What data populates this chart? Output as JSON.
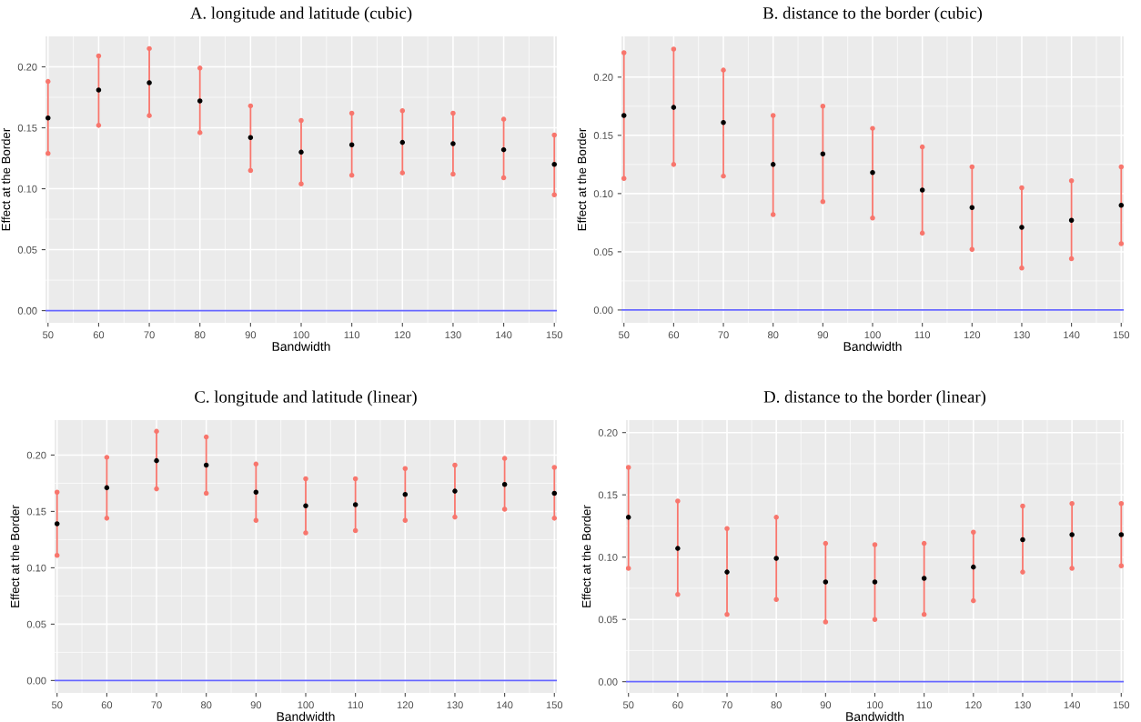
{
  "chart_data": [
    {
      "type": "scatter",
      "title": "A. longitude and latitude (cubic)",
      "xlabel": "Bandwidth",
      "ylabel": "Effect at the Border",
      "x": [
        50,
        60,
        70,
        80,
        90,
        100,
        110,
        120,
        130,
        140,
        150
      ],
      "series": [
        {
          "color": "#000000",
          "values": [
            0.158,
            0.181,
            0.187,
            0.172,
            0.142,
            0.13,
            0.136,
            0.138,
            0.137,
            0.132,
            0.12
          ],
          "errors": [
            [
              0.129,
              0.188
            ],
            [
              0.152,
              0.209
            ],
            [
              0.16,
              0.215
            ],
            [
              0.146,
              0.199
            ],
            [
              0.115,
              0.168
            ],
            [
              0.104,
              0.156
            ],
            [
              0.111,
              0.162
            ],
            [
              0.113,
              0.164
            ],
            [
              0.112,
              0.162
            ],
            [
              0.109,
              0.157
            ],
            [
              0.095,
              0.144
            ]
          ]
        },
        {
          "color": "#f8766d",
          "values": [
            0.129,
            0.152,
            0.16,
            0.146,
            0.115,
            0.104,
            0.111,
            0.113,
            0.112,
            0.109,
            0.095
          ]
        },
        {
          "color": "#f8766d",
          "values": [
            0.188,
            0.209,
            0.215,
            0.199,
            0.168,
            0.156,
            0.162,
            0.164,
            0.162,
            0.157,
            0.144
          ]
        }
      ],
      "xlim": [
        49.5,
        150.5
      ],
      "ylim": [
        -0.01,
        0.225
      ],
      "xticks": [
        50,
        60,
        70,
        80,
        90,
        100,
        110,
        120,
        130,
        140,
        150
      ],
      "yticks": [
        {
          "value": 0,
          "label": "0.00"
        },
        {
          "value": 0.05,
          "label": "0.05"
        },
        {
          "value": 0.1,
          "label": "0.10"
        },
        {
          "value": 0.15,
          "label": "0.15"
        },
        {
          "value": 0.2,
          "label": "0.20"
        }
      ],
      "ref_lines": [
        {
          "axis": "y",
          "value": 0,
          "color": "#6666ff"
        }
      ],
      "grid": true,
      "marker": "circle"
    },
    {
      "type": "scatter",
      "title": "B. distance to the border (cubic)",
      "xlabel": "Bandwidth",
      "ylabel": "Effect at the Border",
      "x": [
        50,
        60,
        70,
        80,
        90,
        100,
        110,
        120,
        130,
        140,
        150
      ],
      "series": [
        {
          "color": "#000000",
          "values": [
            0.167,
            0.174,
            0.161,
            0.125,
            0.134,
            0.118,
            0.103,
            0.088,
            0.071,
            0.077,
            0.09
          ],
          "errors": [
            [
              0.113,
              0.221
            ],
            [
              0.125,
              0.224
            ],
            [
              0.115,
              0.206
            ],
            [
              0.082,
              0.167
            ],
            [
              0.093,
              0.175
            ],
            [
              0.079,
              0.156
            ],
            [
              0.066,
              0.14
            ],
            [
              0.052,
              0.123
            ],
            [
              0.036,
              0.105
            ],
            [
              0.044,
              0.111
            ],
            [
              0.057,
              0.123
            ]
          ]
        },
        {
          "color": "#f8766d",
          "values": [
            0.113,
            0.125,
            0.115,
            0.082,
            0.093,
            0.079,
            0.066,
            0.052,
            0.036,
            0.044,
            0.057
          ]
        },
        {
          "color": "#f8766d",
          "values": [
            0.221,
            0.224,
            0.206,
            0.167,
            0.175,
            0.156,
            0.14,
            0.123,
            0.105,
            0.111,
            0.123
          ]
        }
      ],
      "xlim": [
        49.5,
        150.5
      ],
      "ylim": [
        -0.011,
        0.235
      ],
      "xticks": [
        50,
        60,
        70,
        80,
        90,
        100,
        110,
        120,
        130,
        140,
        150
      ],
      "yticks": [
        {
          "value": 0,
          "label": "0.00"
        },
        {
          "value": 0.05,
          "label": "0.05"
        },
        {
          "value": 0.1,
          "label": "0.10"
        },
        {
          "value": 0.15,
          "label": "0.15"
        },
        {
          "value": 0.2,
          "label": "0.20"
        }
      ],
      "ref_lines": [
        {
          "axis": "y",
          "value": 0,
          "color": "#6666ff"
        }
      ],
      "grid": true,
      "marker": "circle"
    },
    {
      "type": "scatter",
      "title": "C. longitude and latitude (linear)",
      "xlabel": "Bandwidth",
      "ylabel": "Effect at the Border",
      "x": [
        50,
        60,
        70,
        80,
        90,
        100,
        110,
        120,
        130,
        140,
        150
      ],
      "series": [
        {
          "color": "#000000",
          "values": [
            0.139,
            0.171,
            0.195,
            0.191,
            0.167,
            0.155,
            0.156,
            0.165,
            0.168,
            0.174,
            0.166
          ],
          "errors": [
            [
              0.111,
              0.167
            ],
            [
              0.144,
              0.198
            ],
            [
              0.17,
              0.221
            ],
            [
              0.166,
              0.216
            ],
            [
              0.142,
              0.192
            ],
            [
              0.131,
              0.179
            ],
            [
              0.133,
              0.179
            ],
            [
              0.142,
              0.188
            ],
            [
              0.145,
              0.191
            ],
            [
              0.152,
              0.197
            ],
            [
              0.144,
              0.189
            ]
          ]
        },
        {
          "color": "#f8766d",
          "values": [
            0.111,
            0.144,
            0.17,
            0.166,
            0.142,
            0.131,
            0.133,
            0.142,
            0.145,
            0.152,
            0.144
          ]
        },
        {
          "color": "#f8766d",
          "values": [
            0.167,
            0.198,
            0.221,
            0.216,
            0.192,
            0.179,
            0.179,
            0.188,
            0.191,
            0.197,
            0.189
          ]
        }
      ],
      "xlim": [
        49.5,
        150.5
      ],
      "ylim": [
        -0.011,
        0.231
      ],
      "xticks": [
        50,
        60,
        70,
        80,
        90,
        100,
        110,
        120,
        130,
        140,
        150
      ],
      "yticks": [
        {
          "value": 0,
          "label": "0.00"
        },
        {
          "value": 0.05,
          "label": "0.05"
        },
        {
          "value": 0.1,
          "label": "0.10"
        },
        {
          "value": 0.15,
          "label": "0.15"
        },
        {
          "value": 0.2,
          "label": "0.20"
        }
      ],
      "ref_lines": [
        {
          "axis": "y",
          "value": 0,
          "color": "#6666ff"
        }
      ],
      "grid": true,
      "marker": "circle"
    },
    {
      "type": "scatter",
      "title": "D. distance to the border (linear)",
      "xlabel": "Bandwidth",
      "ylabel": "Effect at the Border",
      "x": [
        50,
        60,
        70,
        80,
        90,
        100,
        110,
        120,
        130,
        140,
        150
      ],
      "series": [
        {
          "color": "#000000",
          "values": [
            0.132,
            0.107,
            0.088,
            0.099,
            0.08,
            0.08,
            0.083,
            0.092,
            0.114,
            0.118,
            0.118
          ],
          "errors": [
            [
              0.091,
              0.172
            ],
            [
              0.07,
              0.145
            ],
            [
              0.054,
              0.123
            ],
            [
              0.066,
              0.132
            ],
            [
              0.048,
              0.111
            ],
            [
              0.05,
              0.11
            ],
            [
              0.054,
              0.111
            ],
            [
              0.065,
              0.12
            ],
            [
              0.088,
              0.141
            ],
            [
              0.091,
              0.143
            ],
            [
              0.093,
              0.143
            ]
          ]
        },
        {
          "color": "#f8766d",
          "values": [
            0.091,
            0.07,
            0.054,
            0.066,
            0.048,
            0.05,
            0.054,
            0.065,
            0.088,
            0.091,
            0.093
          ]
        },
        {
          "color": "#f8766d",
          "values": [
            0.172,
            0.145,
            0.123,
            0.132,
            0.111,
            0.11,
            0.111,
            0.12,
            0.141,
            0.143,
            0.143
          ]
        }
      ],
      "xlim": [
        49.5,
        150.5
      ],
      "ylim": [
        -0.009,
        0.21
      ],
      "xticks": [
        50,
        60,
        70,
        80,
        90,
        100,
        110,
        120,
        130,
        140,
        150
      ],
      "yticks": [
        {
          "value": 0,
          "label": "0.00"
        },
        {
          "value": 0.05,
          "label": "0.05"
        },
        {
          "value": 0.1,
          "label": "0.10"
        },
        {
          "value": 0.15,
          "label": "0.15"
        },
        {
          "value": 0.2,
          "label": "0.20"
        }
      ],
      "ref_lines": [
        {
          "axis": "y",
          "value": 0,
          "color": "#6666ff"
        }
      ],
      "grid": true,
      "marker": "circle"
    }
  ]
}
